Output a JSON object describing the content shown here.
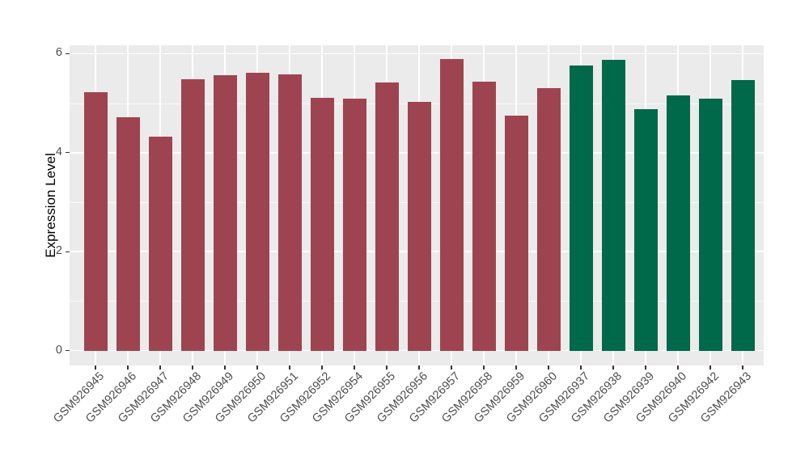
{
  "figure": {
    "background_color": "#FFFFFF",
    "panel_background_color": "#EBEBEB",
    "gridline_color": "#FFFFFF",
    "tick_mark_color": "#333333",
    "axis_text_color": "#4D4D4D",
    "axis_title_color": "#000000"
  },
  "chart_data": {
    "type": "bar",
    "title": "",
    "xlabel": "",
    "ylabel": "Expression Level",
    "ylim": [
      0,
      6.2
    ],
    "y_major_ticks": [
      0,
      2,
      4,
      6
    ],
    "y_minor_ticks": [
      1,
      3,
      5
    ],
    "y_tick_labels": [
      "0",
      "2",
      "4",
      "6"
    ],
    "grid": "white major and minor horizontal lines plus vertical lines at category centers on grey panel",
    "legend_position": "none",
    "x_tick_label_angle": 45,
    "categories": [
      "GSM926945",
      "GSM926946",
      "GSM926947",
      "GSM926948",
      "GSM926949",
      "GSM926950",
      "GSM926951",
      "GSM926952",
      "GSM926954",
      "GSM926955",
      "GSM926956",
      "GSM926957",
      "GSM926958",
      "GSM926959",
      "GSM926960",
      "GSM926937",
      "GSM926938",
      "GSM926939",
      "GSM926940",
      "GSM926942",
      "GSM926943"
    ],
    "values": [
      5.22,
      4.71,
      4.33,
      5.49,
      5.57,
      5.62,
      5.58,
      5.11,
      5.09,
      5.42,
      5.03,
      5.89,
      5.44,
      4.75,
      5.3,
      5.76,
      5.88,
      4.88,
      5.16,
      5.09,
      5.47
    ],
    "bar_groups": [
      "red",
      "red",
      "red",
      "red",
      "red",
      "red",
      "red",
      "red",
      "red",
      "red",
      "red",
      "red",
      "red",
      "red",
      "red",
      "green",
      "green",
      "green",
      "green",
      "green",
      "green"
    ],
    "group_colors": {
      "red": "#9E4450",
      "green": "#00694A"
    }
  }
}
